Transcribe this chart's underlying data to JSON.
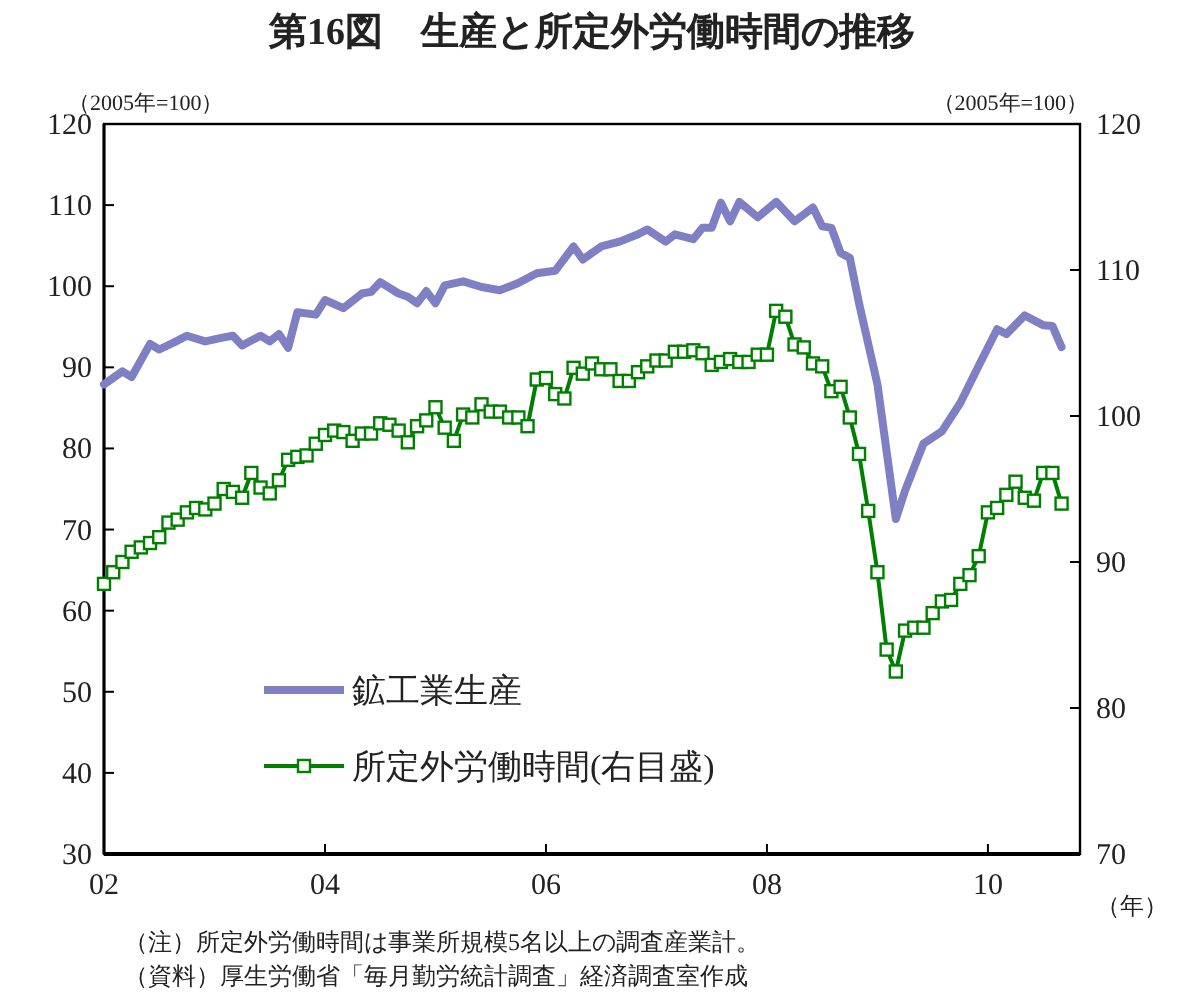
{
  "chart_data": {
    "type": "line",
    "title": "第16図　生産と所定外労働時間の推移",
    "xlabel": "（年）",
    "ylabel": "（2005年=100）",
    "y2label": "（2005年=100）",
    "annotations": [
      "（注）所定外労働時間は事業所規模5名以上の調査産業計。",
      "（資料）厚生労働省「毎月勤労統計調査」経済調査室作成"
    ],
    "xlim": [
      "2002-01",
      "2010-11"
    ],
    "xticks": [
      {
        "value": "2002-01",
        "label": "02"
      },
      {
        "value": "2004-01",
        "label": "04"
      },
      {
        "value": "2006-01",
        "label": "06"
      },
      {
        "value": "2008-01",
        "label": "08"
      },
      {
        "value": "2010-01",
        "label": "10"
      }
    ],
    "ylim": [
      30,
      120
    ],
    "yticks": [
      30,
      40,
      50,
      60,
      70,
      80,
      90,
      100,
      110,
      120
    ],
    "y2lim": [
      70,
      120
    ],
    "y2ticks": [
      70,
      80,
      90,
      100,
      110,
      120
    ],
    "legend": "bottom left",
    "x": [
      "2002-01",
      "2002-02",
      "2002-03",
      "2002-04",
      "2002-05",
      "2002-06",
      "2002-07",
      "2002-08",
      "2002-09",
      "2002-10",
      "2002-11",
      "2002-12",
      "2003-01",
      "2003-02",
      "2003-03",
      "2003-04",
      "2003-05",
      "2003-06",
      "2003-07",
      "2003-08",
      "2003-09",
      "2003-10",
      "2003-11",
      "2003-12",
      "2004-01",
      "2004-02",
      "2004-03",
      "2004-04",
      "2004-05",
      "2004-06",
      "2004-07",
      "2004-08",
      "2004-09",
      "2004-10",
      "2004-11",
      "2004-12",
      "2005-01",
      "2005-02",
      "2005-03",
      "2005-04",
      "2005-05",
      "2005-06",
      "2005-07",
      "2005-08",
      "2005-09",
      "2005-10",
      "2005-11",
      "2005-12",
      "2006-01",
      "2006-02",
      "2006-03",
      "2006-04",
      "2006-05",
      "2006-06",
      "2006-07",
      "2006-08",
      "2006-09",
      "2006-10",
      "2006-11",
      "2006-12",
      "2007-01",
      "2007-02",
      "2007-03",
      "2007-04",
      "2007-05",
      "2007-06",
      "2007-07",
      "2007-08",
      "2007-09",
      "2007-10",
      "2007-11",
      "2007-12",
      "2008-01",
      "2008-02",
      "2008-03",
      "2008-04",
      "2008-05",
      "2008-06",
      "2008-07",
      "2008-08",
      "2008-09",
      "2008-10",
      "2008-11",
      "2008-12",
      "2009-01",
      "2009-02",
      "2009-03",
      "2009-04",
      "2009-05",
      "2009-06",
      "2009-07",
      "2009-08",
      "2009-09",
      "2009-10",
      "2009-11",
      "2009-12",
      "2010-01",
      "2010-02",
      "2010-03",
      "2010-04",
      "2010-05",
      "2010-06",
      "2010-07",
      "2010-08",
      "2010-09"
    ],
    "series": [
      {
        "name": "鉱工業生産",
        "color": "#7f7fc4",
        "marker": "none",
        "x": [
          "2002-01",
          "2002-03",
          "2002-04",
          "2002-06",
          "2002-07",
          "2002-09",
          "2002-10",
          "2002-12",
          "2003-02",
          "2003-03",
          "2003-04",
          "2003-06",
          "2003-07",
          "2003-08",
          "2003-09",
          "2003-10",
          "2003-12",
          "2004-01",
          "2004-03",
          "2004-05",
          "2004-06",
          "2004-07",
          "2004-09",
          "2004-10",
          "2004-11",
          "2004-12",
          "2005-01",
          "2005-02",
          "2005-04",
          "2005-06",
          "2005-08",
          "2005-10",
          "2005-12",
          "2006-02",
          "2006-04",
          "2006-05",
          "2006-07",
          "2006-09",
          "2006-11",
          "2006-12",
          "2007-02",
          "2007-03",
          "2007-05",
          "2007-06",
          "2007-07",
          "2007-08",
          "2007-09",
          "2007-10",
          "2007-12",
          "2008-02",
          "2008-04",
          "2008-06",
          "2008-07",
          "2008-08",
          "2008-09",
          "2008-10",
          "2008-11",
          "2009-01",
          "2009-03",
          "2009-04",
          "2009-06",
          "2009-08",
          "2009-10",
          "2009-12",
          "2010-02",
          "2010-03",
          "2010-05",
          "2010-07",
          "2010-08",
          "2010-09"
        ],
        "values": [
          87.9,
          89.5,
          88.8,
          92.9,
          92.2,
          93.3,
          93.9,
          93.2,
          93.7,
          93.9,
          92.7,
          93.9,
          93.2,
          94.1,
          92.4,
          96.8,
          96.5,
          98.3,
          97.3,
          99.1,
          99.3,
          100.5,
          99.1,
          98.7,
          97.9,
          99.4,
          97.9,
          100.1,
          100.6,
          99.9,
          99.5,
          100.4,
          101.6,
          101.9,
          104.9,
          103.3,
          104.9,
          105.5,
          106.4,
          107.0,
          105.5,
          106.4,
          105.8,
          107.2,
          107.2,
          110.3,
          108.0,
          110.4,
          108.5,
          110.4,
          108.0,
          109.7,
          107.4,
          107.2,
          104.1,
          103.5,
          97.9,
          87.9,
          71.3,
          74.8,
          80.6,
          82.1,
          85.6,
          90.2,
          94.7,
          94.1,
          96.4,
          95.2,
          95.1,
          92.5
        ]
      },
      {
        "name": "所定外労働時間(右目盛)",
        "color": "#008000",
        "marker": "square",
        "axis": "y2",
        "values": [
          88.5,
          89.3,
          90.0,
          90.7,
          91.0,
          91.3,
          91.7,
          92.7,
          92.9,
          93.4,
          93.7,
          93.6,
          94.0,
          95.0,
          94.8,
          94.4,
          96.1,
          95.1,
          94.7,
          95.6,
          97.0,
          97.2,
          97.3,
          98.1,
          98.7,
          99.0,
          98.9,
          98.3,
          98.8,
          98.8,
          99.5,
          99.4,
          99.0,
          98.2,
          99.3,
          99.7,
          100.6,
          99.2,
          98.3,
          100.1,
          99.9,
          100.8,
          100.3,
          100.3,
          99.9,
          99.9,
          99.3,
          102.5,
          102.6,
          101.5,
          101.2,
          103.3,
          102.9,
          103.6,
          103.2,
          103.2,
          102.4,
          102.4,
          103.0,
          103.4,
          103.8,
          103.8,
          104.4,
          104.4,
          104.5,
          104.3,
          103.5,
          103.7,
          103.9,
          103.7,
          103.7,
          104.2,
          104.2,
          107.2,
          106.8,
          104.9,
          104.7,
          103.6,
          103.4,
          101.7,
          102.0,
          99.9,
          97.4,
          93.5,
          89.3,
          84.0,
          82.5,
          85.3,
          85.5,
          85.5,
          86.5,
          87.3,
          87.4,
          88.5,
          89.1,
          90.4,
          93.4,
          93.7,
          94.6,
          95.5,
          94.4,
          94.2,
          96.1,
          96.1,
          94.0
        ]
      }
    ]
  }
}
